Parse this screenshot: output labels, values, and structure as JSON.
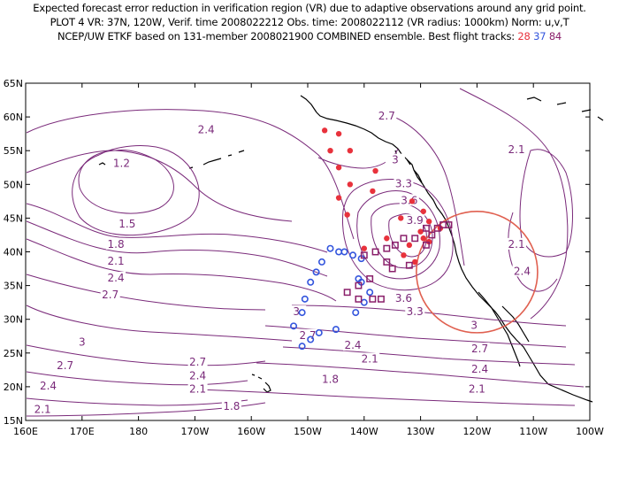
{
  "header": {
    "line1": "Expected forecast error reduction in verification region (VR) due to adaptive observations around any grid point.",
    "line2": "PLOT 4 VR: 37N, 120W, Verif. time 2008022212 Obs. time: 2008022112 (VR radius: 1000km) Norm: u,v,T",
    "line3_prefix": "NCEP/UW ETKF based on 131-member 2008021900 COMBINED ensemble.  Best flight tracks:",
    "track_ids": [
      {
        "label": "28",
        "color": "#e8323c"
      },
      {
        "label": "37",
        "color": "#3355dd"
      },
      {
        "label": "84",
        "color": "#8a1f6a"
      }
    ]
  },
  "map": {
    "lon_labels": [
      "160E",
      "170E",
      "180",
      "170W",
      "160W",
      "150W",
      "140W",
      "130W",
      "120W",
      "110W",
      "100W"
    ],
    "lat_labels": [
      "65N",
      "60N",
      "55N",
      "50N",
      "45N",
      "40N",
      "35N",
      "30N",
      "25N",
      "20N",
      "15N"
    ],
    "contour_labels": [
      {
        "text": "2.7",
        "lon": -136,
        "lat": 60
      },
      {
        "text": "2.4",
        "lon": -168,
        "lat": 58
      },
      {
        "text": "1.2",
        "lon": 177,
        "lat": 53
      },
      {
        "text": "3",
        "lon": -134.5,
        "lat": 53.5
      },
      {
        "text": "3.3",
        "lon": -133,
        "lat": 50
      },
      {
        "text": "3.6",
        "lon": -132,
        "lat": 47.5
      },
      {
        "text": "3.9",
        "lon": -131,
        "lat": 44.5
      },
      {
        "text": "2.1",
        "lon": -113,
        "lat": 55
      },
      {
        "text": "1.5",
        "lon": 178,
        "lat": 44
      },
      {
        "text": "1.8",
        "lon": 176,
        "lat": 41
      },
      {
        "text": "2.1",
        "lon": 176,
        "lat": 38.5
      },
      {
        "text": "2.4",
        "lon": 176,
        "lat": 36
      },
      {
        "text": "2.7",
        "lon": 175,
        "lat": 33.5
      },
      {
        "text": "2.1",
        "lon": -113,
        "lat": 41
      },
      {
        "text": "2.4",
        "lon": -112,
        "lat": 37
      },
      {
        "text": "3.6",
        "lon": -133,
        "lat": 33
      },
      {
        "text": "3.3",
        "lon": -131,
        "lat": 31
      },
      {
        "text": "3",
        "lon": -152,
        "lat": 31
      },
      {
        "text": "3",
        "lon": -120.5,
        "lat": 29
      },
      {
        "text": "2.7",
        "lon": -150,
        "lat": 27.5
      },
      {
        "text": "2.4",
        "lon": -142,
        "lat": 26
      },
      {
        "text": "2.1",
        "lon": -139,
        "lat": 24
      },
      {
        "text": "2.7",
        "lon": -119.5,
        "lat": 25.5
      },
      {
        "text": "2.4",
        "lon": -119.5,
        "lat": 22.5
      },
      {
        "text": "1.8",
        "lon": -146,
        "lat": 21
      },
      {
        "text": "2.7",
        "lon": -169.5,
        "lat": 23.5
      },
      {
        "text": "2.4",
        "lon": -169.5,
        "lat": 21.5
      },
      {
        "text": "2.1",
        "lon": -169.5,
        "lat": 19.5
      },
      {
        "text": "2.1",
        "lon": -120,
        "lat": 19.5
      },
      {
        "text": "1.8",
        "lon": -163.5,
        "lat": 17
      },
      {
        "text": "3",
        "lon": 170,
        "lat": 26.5
      },
      {
        "text": "2.7",
        "lon": 167,
        "lat": 23
      },
      {
        "text": "2.4",
        "lon": 164,
        "lat": 20
      },
      {
        "text": "2.1",
        "lon": 163,
        "lat": 16.5
      }
    ],
    "verification_circle": {
      "lon": -120,
      "lat": 37,
      "radius_km": 1000,
      "color": "#e06050"
    },
    "contour_color": "#7a2a7a",
    "tracks": {
      "red_dots": [
        [
          -147,
          58
        ],
        [
          -144.5,
          57.5
        ],
        [
          -146,
          55
        ],
        [
          -142.5,
          55
        ],
        [
          -144.5,
          52.5
        ],
        [
          -138,
          52
        ],
        [
          -142.5,
          50
        ],
        [
          -144.5,
          48
        ],
        [
          -138.5,
          49
        ],
        [
          -131.5,
          47.5
        ],
        [
          -129.5,
          46
        ],
        [
          -143,
          45.5
        ],
        [
          -133.5,
          45
        ],
        [
          -128.5,
          44.5
        ],
        [
          -130,
          43
        ],
        [
          -136,
          42
        ],
        [
          -129.5,
          42
        ],
        [
          -128.5,
          41.5
        ],
        [
          -140,
          40.5
        ],
        [
          -132,
          41
        ],
        [
          -133,
          39.5
        ],
        [
          -131,
          38.5
        ],
        [
          -126.5,
          43.5
        ]
      ],
      "blue_circles": [
        [
          -146,
          40.5
        ],
        [
          -144.5,
          40
        ],
        [
          -143.5,
          40
        ],
        [
          -142,
          39.5
        ],
        [
          -140.5,
          39
        ],
        [
          -147.5,
          38.5
        ],
        [
          -148.5,
          37
        ],
        [
          -149.5,
          35.5
        ],
        [
          -141,
          36
        ],
        [
          -140.5,
          35.5
        ],
        [
          -139,
          34
        ],
        [
          -150.5,
          33
        ],
        [
          -140,
          32.5
        ],
        [
          -151,
          31
        ],
        [
          -141.5,
          31
        ],
        [
          -152.5,
          29
        ],
        [
          -145,
          28.5
        ],
        [
          -148,
          28
        ],
        [
          -149.5,
          27
        ],
        [
          -151,
          26
        ]
      ],
      "purple_squares": [
        [
          -125,
          44
        ],
        [
          -126,
          44
        ],
        [
          -127,
          43.5
        ],
        [
          -129,
          43.5
        ],
        [
          -128,
          42.5
        ],
        [
          -131,
          42
        ],
        [
          -133,
          42
        ],
        [
          -129,
          41
        ],
        [
          -134.5,
          41
        ],
        [
          -136,
          40.5
        ],
        [
          -138,
          40
        ],
        [
          -140,
          39.5
        ],
        [
          -136,
          38.5
        ],
        [
          -132,
          38
        ],
        [
          -135,
          37.5
        ],
        [
          -139,
          36
        ],
        [
          -141,
          35
        ],
        [
          -143,
          34
        ],
        [
          -141,
          33
        ],
        [
          -138.5,
          33
        ],
        [
          -137,
          33
        ]
      ]
    }
  }
}
